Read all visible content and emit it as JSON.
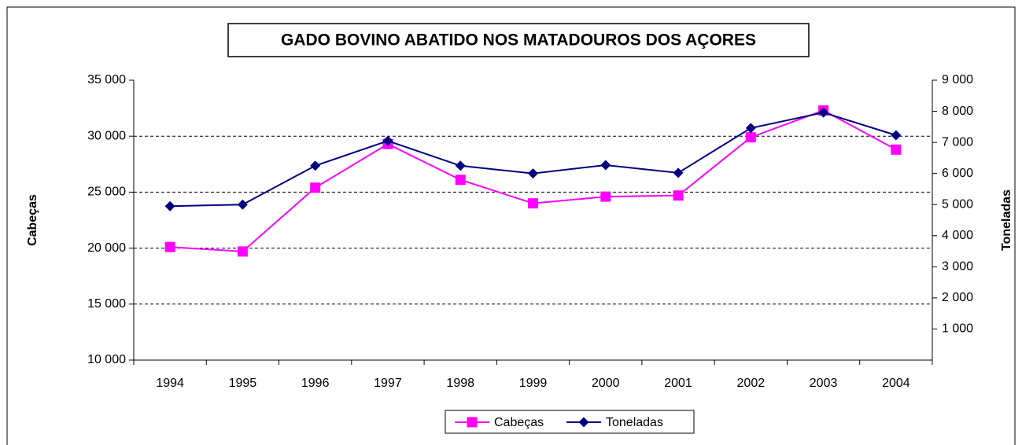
{
  "chart_data": {
    "type": "line",
    "title": "GADO BOVINO ABATIDO NOS MATADOUROS DOS AÇORES",
    "y_label": "Cabeças",
    "y2_label": "Toneladas",
    "categories": [
      "1994",
      "1995",
      "1996",
      "1997",
      "1998",
      "1999",
      "2000",
      "2001",
      "2002",
      "2003",
      "2004"
    ],
    "series": [
      {
        "name": "Cabeças",
        "color": "#ff00ff",
        "marker": "square",
        "values": [
          20100,
          19700,
          25400,
          29300,
          26100,
          24000,
          24600,
          24700,
          29900,
          32300,
          28800
        ]
      },
      {
        "name": "Toneladas",
        "color": "#000080",
        "marker": "diamond",
        "axis": "y2",
        "values": [
          4950,
          5000,
          6250,
          7050,
          6250,
          6000,
          6270,
          6020,
          7460,
          7960,
          7230
        ]
      }
    ],
    "ylim": [
      10000,
      35000
    ],
    "yticks": [
      {
        "value": 10000,
        "label": "10 000"
      },
      {
        "value": 15000,
        "label": "15 000"
      },
      {
        "value": 20000,
        "label": "20 000"
      },
      {
        "value": 25000,
        "label": "25 000"
      },
      {
        "value": 30000,
        "label": "30 000"
      },
      {
        "value": 35000,
        "label": "35 000"
      }
    ],
    "y2lim": [
      0,
      9000
    ],
    "y2ticks": [
      {
        "value": 1000,
        "label": "1 000"
      },
      {
        "value": 2000,
        "label": "2 000"
      },
      {
        "value": 3000,
        "label": "3 000"
      },
      {
        "value": 4000,
        "label": "4 000"
      },
      {
        "value": 5000,
        "label": "5 000"
      },
      {
        "value": 6000,
        "label": "6 000"
      },
      {
        "value": 7000,
        "label": "7 000"
      },
      {
        "value": 8000,
        "label": "8 000"
      },
      {
        "value": 9000,
        "label": "9 000"
      }
    ],
    "grid": true,
    "legend": "bottom"
  }
}
